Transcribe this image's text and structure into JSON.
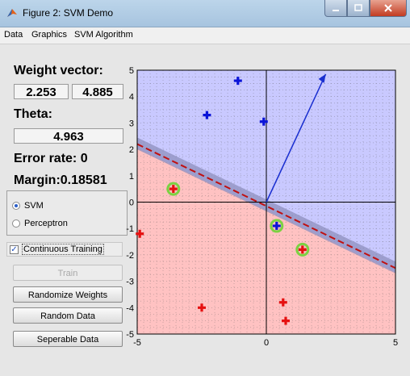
{
  "window": {
    "title": "Figure 2: SVM Demo"
  },
  "menu": [
    "Data",
    "Graphics",
    "SVM Algorithm"
  ],
  "panel": {
    "weight_label": "Weight vector:",
    "weight_x": "2.253",
    "weight_y": "4.885",
    "theta_label": "Theta:",
    "theta_value": "4.963",
    "error_rate": "Error rate: 0",
    "margin": "Margin:0.18581",
    "radio_svm": "SVM",
    "radio_perceptron": "Perceptron",
    "selected_algorithm": "SVM",
    "continuous_training": "Continuous Training",
    "continuous_checked": true,
    "train_button": "Train",
    "randomize_button": "Randomize Weights",
    "random_data_button": "Random Data",
    "separable_button": "Seperable Data"
  },
  "colors": {
    "positive_region": "#c9c9ff",
    "negative_region": "#ffc2c2",
    "positive_point": "#0a14d8",
    "negative_point": "#e51010",
    "boundary": "#c01010",
    "margin_band": "#8d8fbd",
    "support_ring": "#7bd242",
    "weight_arrow": "#1a2fd0"
  },
  "chart_data": {
    "type": "scatter",
    "xlim": [
      -5,
      5
    ],
    "ylim": [
      -5,
      5
    ],
    "x_ticks": [
      "-5",
      "0",
      "5"
    ],
    "y_ticks": [
      "5",
      "4",
      "3",
      "2",
      "1",
      "0",
      "-1",
      "-2",
      "-3",
      "-4",
      "-5"
    ],
    "grid": true,
    "series": [
      {
        "name": "positive",
        "marker": "plus",
        "color": "#0a14d8",
        "points": [
          [
            -1.1,
            4.6
          ],
          [
            -2.3,
            3.3
          ],
          [
            -0.1,
            3.05
          ],
          [
            0.4,
            -0.9
          ]
        ]
      },
      {
        "name": "negative",
        "marker": "plus",
        "color": "#e51010",
        "points": [
          [
            -3.6,
            0.5
          ],
          [
            -4.9,
            -1.2
          ],
          [
            1.4,
            -1.8
          ],
          [
            -2.5,
            -4.0
          ],
          [
            0.65,
            -3.8
          ],
          [
            0.75,
            -4.5
          ]
        ]
      }
    ],
    "support_vectors": [
      [
        -3.6,
        0.5
      ],
      [
        0.4,
        -0.9
      ],
      [
        1.4,
        -1.8
      ]
    ],
    "weight_vector": [
      2.253,
      4.885
    ],
    "theta": 4.963
  }
}
